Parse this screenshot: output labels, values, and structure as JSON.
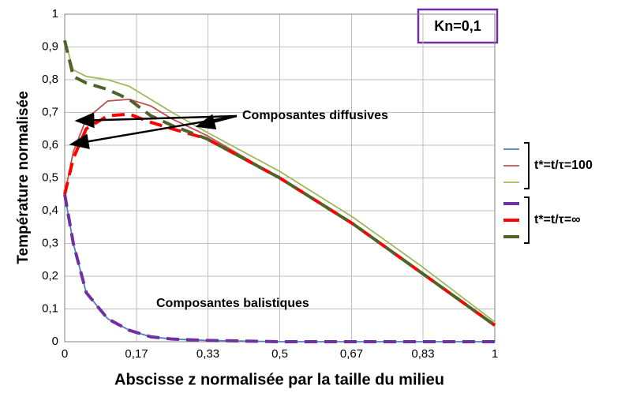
{
  "chart_data": {
    "type": "line",
    "y_label": "Température normalisée",
    "x_label": "Abscisse z normalisée par la taille du milieu",
    "annotations": [
      "Kn=0,1",
      "Composantes diffusives",
      "Composantes balistiques"
    ],
    "x": [
      0,
      0.02,
      0.05,
      0.1,
      0.15,
      0.2,
      0.25,
      0.33,
      0.5,
      0.67,
      0.83,
      1
    ],
    "series": [
      {
        "color": "#4f81bd",
        "dashed": false,
        "values": [
          0.45,
          0.3,
          0.15,
          0.07,
          0.035,
          0.015,
          0.008,
          0.004,
          0,
          0,
          0,
          0
        ]
      },
      {
        "color": "#c0504d",
        "dashed": false,
        "values": [
          0.45,
          0.58,
          0.68,
          0.735,
          0.74,
          0.72,
          0.68,
          0.63,
          0.5,
          0.36,
          0.21,
          0.05
        ]
      },
      {
        "color": "#9bbb59",
        "dashed": false,
        "values": [
          0.92,
          0.83,
          0.81,
          0.8,
          0.78,
          0.74,
          0.7,
          0.64,
          0.52,
          0.38,
          0.23,
          0.06
        ]
      },
      {
        "color": "#7030a0",
        "dashed": true,
        "values": [
          0.45,
          0.3,
          0.15,
          0.07,
          0.035,
          0.015,
          0.008,
          0.004,
          0,
          0,
          0,
          0
        ]
      },
      {
        "color": "#ff0000",
        "dashed": true,
        "values": [
          0.45,
          0.56,
          0.65,
          0.69,
          0.695,
          0.67,
          0.65,
          0.62,
          0.5,
          0.36,
          0.21,
          0.05
        ]
      },
      {
        "color": "#4f6228",
        "dashed": true,
        "values": [
          0.92,
          0.81,
          0.79,
          0.77,
          0.74,
          0.69,
          0.66,
          0.62,
          0.5,
          0.36,
          0.21,
          0.05
        ]
      }
    ],
    "legend_groups": [
      {
        "label": "t*=t/τ=100",
        "series": [
          0,
          1,
          2
        ]
      },
      {
        "label": "t*=t/τ=∞",
        "series": [
          3,
          4,
          5
        ]
      }
    ],
    "xlim": [
      0,
      1
    ],
    "ylim": [
      0,
      1
    ],
    "xticks": [
      0,
      {
        "value": 0.167,
        "label": "0,17"
      },
      {
        "value": 0.333,
        "label": "0,33"
      },
      {
        "value": 0.5,
        "label": "0,5"
      },
      {
        "value": 0.667,
        "label": "0,67"
      },
      {
        "value": 0.833,
        "label": "0,83"
      },
      1
    ],
    "yticks": [
      0,
      {
        "value": 0.1,
        "label": "0,1"
      },
      {
        "value": 0.2,
        "label": "0,2"
      },
      {
        "value": 0.3,
        "label": "0,3"
      },
      {
        "value": 0.4,
        "label": "0,4"
      },
      {
        "value": 0.5,
        "label": "0,5"
      },
      {
        "value": 0.6,
        "label": "0,6"
      },
      {
        "value": 0.7,
        "label": "0,7"
      },
      {
        "value": 0.8,
        "label": "0,8"
      },
      {
        "value": 0.9,
        "label": "0,9"
      },
      1
    ],
    "grid": true
  }
}
